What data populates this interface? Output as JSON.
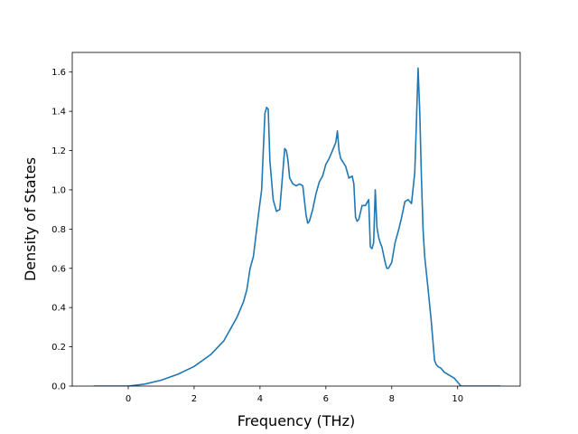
{
  "chart_data": {
    "type": "line",
    "title": "",
    "xlabel": "Frequency (THz)",
    "ylabel": "Density of States",
    "xlim": [
      -1.7,
      11.9
    ],
    "ylim": [
      0.0,
      1.7
    ],
    "xticks": [
      0,
      2,
      4,
      6,
      8,
      10
    ],
    "yticks": [
      0.0,
      0.2,
      0.4,
      0.6,
      0.8,
      1.0,
      1.2,
      1.4,
      1.6
    ],
    "xtick_labels": [
      "0",
      "2",
      "4",
      "6",
      "8",
      "10"
    ],
    "ytick_labels": [
      "0.0",
      "0.2",
      "0.4",
      "0.6",
      "0.8",
      "1.0",
      "1.2",
      "1.4",
      "1.6"
    ],
    "grid": false,
    "line_color": "#1f77b4",
    "series": [
      {
        "x": [
          -1.05,
          0.0,
          0.5,
          1.0,
          1.5,
          2.0,
          2.5,
          2.9,
          3.1,
          3.3,
          3.5,
          3.6,
          3.7,
          3.8,
          3.85,
          3.95,
          4.05,
          4.1,
          4.15,
          4.2,
          4.25,
          4.3,
          4.4,
          4.5,
          4.6,
          4.65,
          4.75,
          4.8,
          4.85,
          4.9,
          5.0,
          5.1,
          5.2,
          5.3,
          5.4,
          5.45,
          5.5,
          5.6,
          5.7,
          5.8,
          5.9,
          6.0,
          6.1,
          6.2,
          6.3,
          6.35,
          6.4,
          6.45,
          6.6,
          6.7,
          6.8,
          6.85,
          6.9,
          6.95,
          7.0,
          7.1,
          7.2,
          7.3,
          7.35,
          7.4,
          7.45,
          7.5,
          7.55,
          7.6,
          7.65,
          7.7,
          7.8,
          7.85,
          7.9,
          8.0,
          8.1,
          8.2,
          8.3,
          8.4,
          8.5,
          8.6,
          8.7,
          8.75,
          8.8,
          8.85,
          8.9,
          8.95,
          9.0,
          9.1,
          9.2,
          9.3,
          9.35,
          9.4,
          9.5,
          9.6,
          9.7,
          9.8,
          9.9,
          10.0,
          10.1,
          10.2,
          10.3,
          10.5,
          11.3
        ],
        "y": [
          0.0,
          0.0,
          0.01,
          0.03,
          0.06,
          0.1,
          0.16,
          0.23,
          0.29,
          0.35,
          0.43,
          0.49,
          0.6,
          0.66,
          0.73,
          0.87,
          1.0,
          1.2,
          1.39,
          1.42,
          1.41,
          1.15,
          0.95,
          0.89,
          0.9,
          1.0,
          1.21,
          1.2,
          1.15,
          1.06,
          1.03,
          1.02,
          1.03,
          1.02,
          0.87,
          0.83,
          0.84,
          0.9,
          0.98,
          1.04,
          1.07,
          1.13,
          1.16,
          1.2,
          1.24,
          1.3,
          1.2,
          1.16,
          1.12,
          1.06,
          1.07,
          1.03,
          0.86,
          0.84,
          0.85,
          0.92,
          0.92,
          0.95,
          0.71,
          0.7,
          0.73,
          1.0,
          0.81,
          0.76,
          0.73,
          0.71,
          0.63,
          0.6,
          0.6,
          0.63,
          0.73,
          0.79,
          0.86,
          0.94,
          0.95,
          0.93,
          1.09,
          1.35,
          1.62,
          1.4,
          1.07,
          0.8,
          0.66,
          0.5,
          0.33,
          0.13,
          0.11,
          0.1,
          0.09,
          0.07,
          0.06,
          0.05,
          0.04,
          0.02,
          0.0,
          0.0,
          0.0,
          0.0,
          0.0
        ]
      }
    ]
  }
}
